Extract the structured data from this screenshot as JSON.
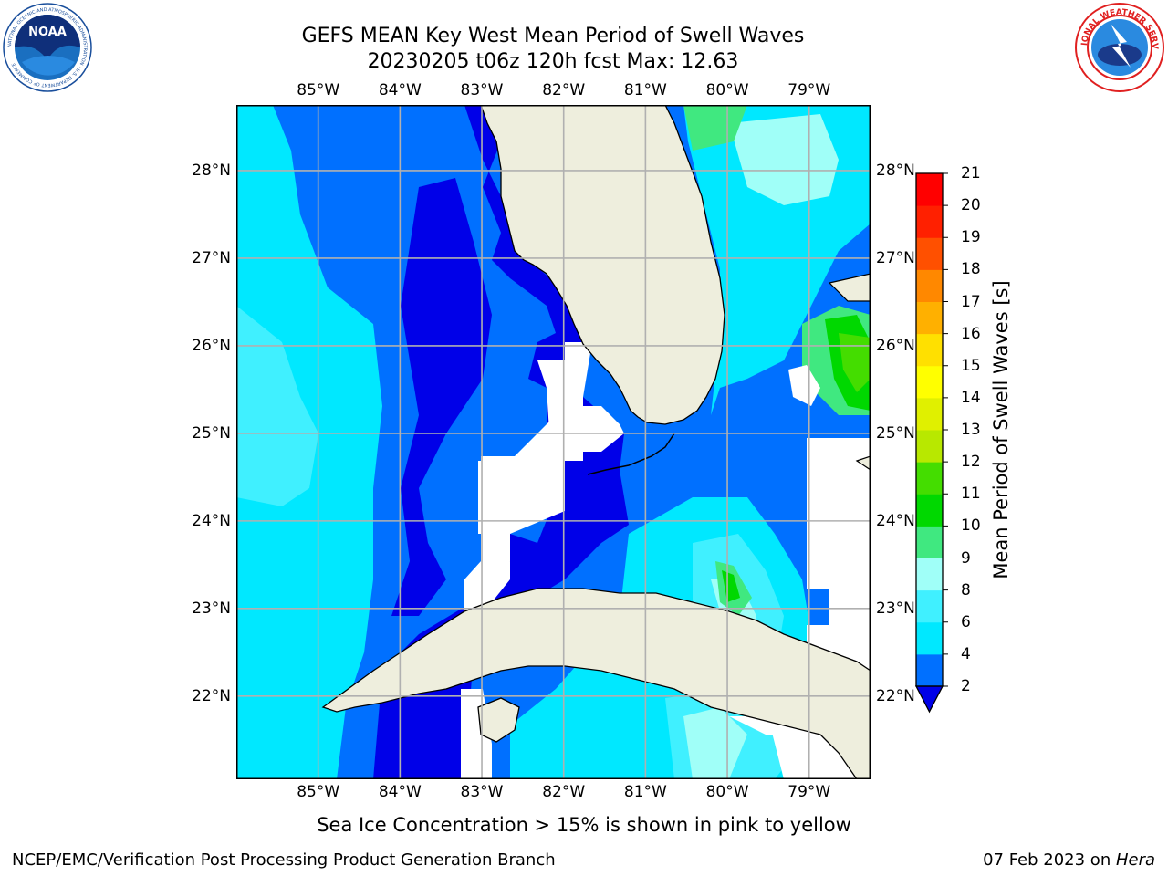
{
  "title": {
    "line1": "GEFS MEAN Key West Mean Period of Swell Waves",
    "line2": "20230205 t06z 120h fcst   Max: 12.63"
  },
  "logos": {
    "left": {
      "text": "NOAA",
      "ring": "NATIONAL OCEANIC AND ATMOSPHERIC ADMINISTRATION · U.S. DEPARTMENT OF COMMERCE",
      "color": "#1a4f9c"
    },
    "right": {
      "ring": "NATIONAL WEATHER SERVICE",
      "color": "#e02020"
    }
  },
  "map": {
    "lon_labels": [
      "85°W",
      "84°W",
      "83°W",
      "82°W",
      "81°W",
      "80°W",
      "79°W"
    ],
    "lat_labels": [
      "28°N",
      "27°N",
      "26°N",
      "25°N",
      "24°N",
      "23°N",
      "22°N"
    ],
    "lon_values": [
      -85,
      -84,
      -83,
      -82,
      -81,
      -80,
      -79
    ],
    "lat_values": [
      28,
      27,
      26,
      25,
      24,
      23,
      22
    ],
    "lon_range": [
      -86,
      -78.25
    ],
    "lat_range": [
      21.05,
      28.75
    ],
    "land_color": "#eeeedd",
    "grid": true
  },
  "colorbar": {
    "label": "Mean Period of Swell Waves [s]",
    "ticks": [
      "2",
      "4",
      "6",
      "8",
      "9",
      "10",
      "11",
      "12",
      "13",
      "14",
      "15",
      "16",
      "17",
      "18",
      "19",
      "20",
      "21"
    ],
    "colors": [
      "#0000e8",
      "#0070ff",
      "#00e8ff",
      "#40f0ff",
      "#a0fff8",
      "#40e880",
      "#00d800",
      "#44dd00",
      "#b8e800",
      "#e0f000",
      "#ffff00",
      "#ffe000",
      "#ffb000",
      "#ff8800",
      "#ff5000",
      "#ff2000",
      "#ff0000"
    ]
  },
  "note": "Sea Ice Concentration > 15% is shown in pink to yellow",
  "footer": {
    "left": "NCEP/EMC/Verification Post Processing Product Generation Branch",
    "date": "07 Feb 2023 on ",
    "host": "Hera"
  }
}
